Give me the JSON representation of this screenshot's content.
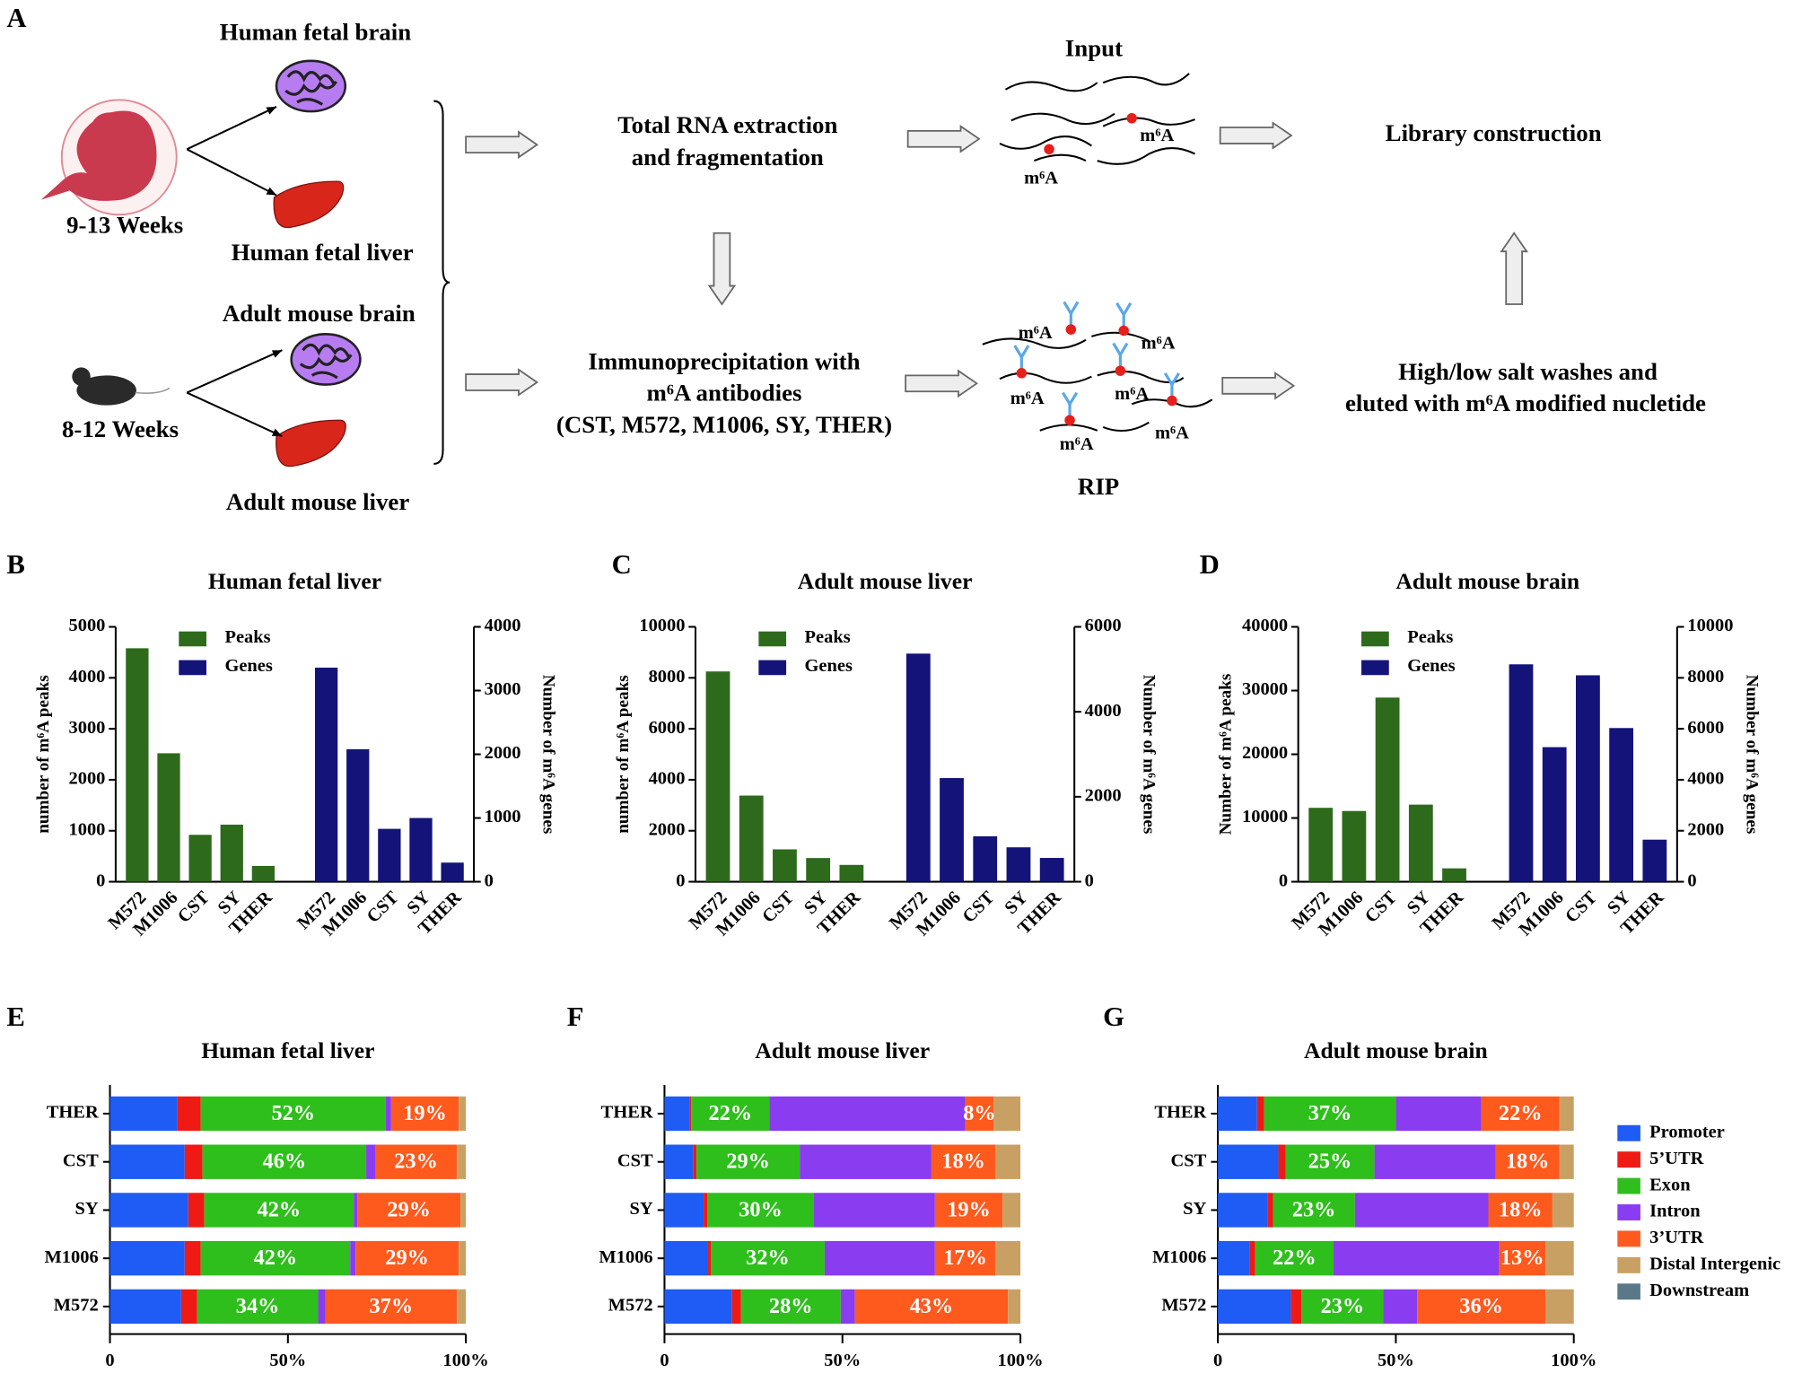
{
  "panel_a": {
    "label": "A",
    "human_fetal_brain": "Human fetal brain",
    "fetal_weeks": "9-13 Weeks",
    "human_fetal_liver": "Human fetal liver",
    "adult_mouse_brain": "Adult mouse brain",
    "mouse_weeks": "8-12 Weeks",
    "adult_mouse_liver": "Adult mouse liver",
    "rna_extraction_1": "Total RNA extraction",
    "rna_extraction_2": "and fragmentation",
    "input": "Input",
    "library": "Library construction",
    "ip_1": "Immunoprecipitation with",
    "ip_2": "m⁶A antibodies",
    "ip_3": "(CST, M572, M1006, SY, THER)",
    "rip": "RIP",
    "wash_1": "High/low salt washes and",
    "wash_2": "eluted with m⁶A modified nucletide",
    "m6a_labels": [
      "m⁶A",
      "m⁶A",
      "m⁶A",
      "m⁶A",
      "m⁶A",
      "m⁶A",
      "m⁶A",
      "m⁶A"
    ]
  },
  "chart_data": [
    {
      "type": "bar",
      "panel": "B",
      "title": "Human fetal liver",
      "categories": [
        "M572",
        "M1006",
        "CST",
        "SY",
        "THER"
      ],
      "series": [
        {
          "name": "Peaks",
          "color": "#2e6a1c",
          "values": [
            4580,
            2520,
            920,
            1120,
            310
          ]
        },
        {
          "name": "Genes",
          "color": "#13137a",
          "axis": "y2",
          "values": [
            3360,
            2080,
            830,
            1000,
            300
          ]
        }
      ],
      "ylabel": "number of m⁶A peaks",
      "y2label": "Number of m⁶A genes",
      "ylim": [
        0,
        5000
      ],
      "yticks": [
        0,
        1000,
        2000,
        3000,
        4000,
        5000
      ],
      "y2lim": [
        0,
        4000
      ],
      "y2ticks": [
        0,
        1000,
        2000,
        3000,
        4000
      ],
      "legend": "upper left"
    },
    {
      "type": "bar",
      "panel": "C",
      "title": "Adult mouse liver",
      "categories": [
        "M572",
        "M1006",
        "CST",
        "SY",
        "THER"
      ],
      "series": [
        {
          "name": "Peaks",
          "color": "#2e6a1c",
          "values": [
            8250,
            3380,
            1270,
            930,
            660
          ]
        },
        {
          "name": "Genes",
          "color": "#13137a",
          "axis": "y2",
          "values": [
            5370,
            2440,
            1070,
            810,
            560
          ]
        }
      ],
      "ylabel": "number of m⁶A peaks",
      "y2label": "Number of m⁶A genes",
      "ylim": [
        0,
        10000
      ],
      "yticks": [
        0,
        2000,
        4000,
        6000,
        8000,
        10000
      ],
      "y2lim": [
        0,
        6000
      ],
      "y2ticks": [
        0,
        2000,
        4000,
        6000
      ],
      "legend": "upper left"
    },
    {
      "type": "bar",
      "panel": "D",
      "title": "Adult mouse brain",
      "categories": [
        "M572",
        "M1006",
        "CST",
        "SY",
        "THER"
      ],
      "series": [
        {
          "name": "Peaks",
          "color": "#2e6a1c",
          "values": [
            11600,
            11100,
            28900,
            12100,
            2100
          ]
        },
        {
          "name": "Genes",
          "color": "#13137a",
          "axis": "y2",
          "values": [
            8530,
            5280,
            8100,
            6030,
            1650
          ]
        }
      ],
      "ylabel": "Number of m⁶A peaks",
      "y2label": "Number of m⁶A genes",
      "ylim": [
        0,
        40000
      ],
      "yticks": [
        0,
        10000,
        20000,
        30000,
        40000
      ],
      "y2lim": [
        0,
        10000
      ],
      "y2ticks": [
        0,
        2000,
        4000,
        6000,
        8000,
        10000
      ],
      "legend": "upper left"
    },
    {
      "type": "stacked_barh",
      "panel": "E",
      "title": "Human fetal liver",
      "categories": [
        "THER",
        "CST",
        "SY",
        "M1006",
        "M572"
      ],
      "xlim": [
        0,
        100
      ],
      "xticks": [
        0,
        {
          "value": 50,
          "label": "50%"
        },
        {
          "value": 100,
          "label": "100%"
        }
      ],
      "series": [
        {
          "name": "Promoter",
          "color": "#1f5bf5",
          "values": [
            19,
            21,
            22,
            21,
            20
          ]
        },
        {
          "name": "5’UTR",
          "color": "#f01a14",
          "values": [
            6.5,
            5,
            4.5,
            4.5,
            4.5
          ]
        },
        {
          "name": "Exon",
          "color": "#2fbf1c",
          "values": [
            52,
            46,
            42,
            42,
            34
          ],
          "value_labels": [
            "52%",
            "46%",
            "42%",
            "42%",
            "34%"
          ]
        },
        {
          "name": "Intron",
          "color": "#8a3cf0",
          "values": [
            1.5,
            2.5,
            1,
            1.5,
            2
          ]
        },
        {
          "name": "3’UTR",
          "color": "#ff5a1e",
          "values": [
            19,
            23,
            29,
            29,
            37
          ],
          "value_labels": [
            "19%",
            "23%",
            "29%",
            "29%",
            "37%"
          ]
        },
        {
          "name": "Distal Intergenic",
          "color": "#c9a063",
          "values": [
            2,
            2.5,
            1.5,
            2,
            2.5
          ]
        },
        {
          "name": "Downstream",
          "color": "#5b7888",
          "values": [
            0,
            0,
            0,
            0,
            0
          ]
        }
      ]
    },
    {
      "type": "stacked_barh",
      "panel": "F",
      "title": "Adult mouse liver",
      "categories": [
        "THER",
        "CST",
        "SY",
        "M1006",
        "M572"
      ],
      "xlim": [
        0,
        100
      ],
      "xticks": [
        0,
        {
          "value": 50,
          "label": "50%"
        },
        {
          "value": 100,
          "label": "100%"
        }
      ],
      "series": [
        {
          "name": "Promoter",
          "color": "#1f5bf5",
          "values": [
            7,
            8,
            11,
            12,
            19
          ]
        },
        {
          "name": "5’UTR",
          "color": "#f01a14",
          "values": [
            0.5,
            1,
            1,
            1,
            2.5
          ]
        },
        {
          "name": "Exon",
          "color": "#2fbf1c",
          "values": [
            22,
            29,
            30,
            32,
            28
          ],
          "value_labels": [
            "22%",
            "29%",
            "30%",
            "32%",
            "28%"
          ]
        },
        {
          "name": "Intron",
          "color": "#8a3cf0",
          "values": [
            55,
            37,
            34,
            31,
            4
          ]
        },
        {
          "name": "3’UTR",
          "color": "#ff5a1e",
          "values": [
            8,
            18,
            19,
            17,
            43
          ],
          "value_labels": [
            "8%",
            "18%",
            "19%",
            "17%",
            "43%"
          ]
        },
        {
          "name": "Distal Intergenic",
          "color": "#c9a063",
          "values": [
            7.5,
            7,
            5,
            7,
            3.5
          ]
        },
        {
          "name": "Downstream",
          "color": "#5b7888",
          "values": [
            0,
            0,
            0,
            0,
            0
          ]
        }
      ]
    },
    {
      "type": "stacked_barh",
      "panel": "G",
      "title": "Adult mouse brain",
      "categories": [
        "THER",
        "CST",
        "SY",
        "M1006",
        "M572"
      ],
      "xlim": [
        0,
        100
      ],
      "xticks": [
        0,
        {
          "value": 50,
          "label": "50%"
        },
        {
          "value": 100,
          "label": "100%"
        }
      ],
      "legend": "right",
      "series": [
        {
          "name": "Promoter",
          "color": "#1f5bf5",
          "values": [
            11,
            17,
            14,
            9,
            20.5
          ]
        },
        {
          "name": "5’UTR",
          "color": "#f01a14",
          "values": [
            2,
            2,
            1.5,
            1.5,
            3
          ]
        },
        {
          "name": "Exon",
          "color": "#2fbf1c",
          "values": [
            37,
            25,
            23,
            22,
            23
          ],
          "value_labels": [
            "37%",
            "25%",
            "23%",
            "22%",
            "23%"
          ]
        },
        {
          "name": "Intron",
          "color": "#8a3cf0",
          "values": [
            24,
            34,
            37.5,
            46.5,
            9.5
          ]
        },
        {
          "name": "3’UTR",
          "color": "#ff5a1e",
          "values": [
            22,
            18,
            18,
            13,
            36
          ],
          "value_labels": [
            "22%",
            "18%",
            "18%",
            "13%",
            "36%"
          ]
        },
        {
          "name": "Distal Intergenic",
          "color": "#c9a063",
          "values": [
            4,
            4,
            6,
            8,
            8
          ]
        },
        {
          "name": "Downstream",
          "color": "#5b7888",
          "values": [
            0,
            0,
            0,
            0,
            0
          ]
        }
      ]
    }
  ]
}
